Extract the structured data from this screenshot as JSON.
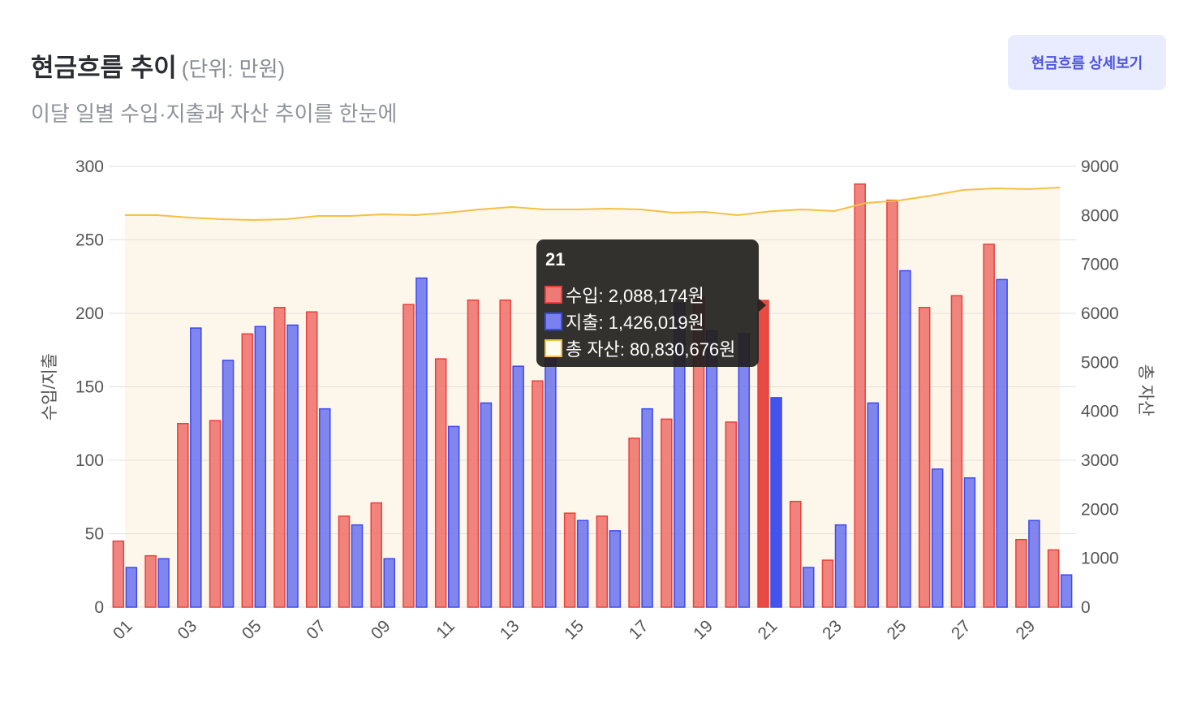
{
  "header": {
    "title": "현금흐름 추이",
    "unit": "(단위: 만원)",
    "subtitle": "이달 일별 수입·지출과 자산 추이를 한눈에",
    "detail_button": "현금흐름 상세보기"
  },
  "colors": {
    "income": "#ef6f6a",
    "income_active": "#e8403b",
    "expense": "#6a72ef",
    "expense_active": "#3a4af0",
    "assets_line": "#f5c043",
    "assets_fill": "#fdf6ea"
  },
  "chart_data": {
    "type": "bar",
    "categories": [
      "01",
      "02",
      "03",
      "04",
      "05",
      "06",
      "07",
      "08",
      "09",
      "10",
      "11",
      "12",
      "13",
      "14",
      "15",
      "16",
      "17",
      "18",
      "19",
      "20",
      "21",
      "22",
      "23",
      "24",
      "25",
      "26",
      "27",
      "28",
      "29",
      "30"
    ],
    "x_tick_labels": [
      "01",
      "03",
      "05",
      "07",
      "09",
      "11",
      "13",
      "15",
      "17",
      "19",
      "21",
      "23",
      "25",
      "27",
      "29"
    ],
    "ylabel": "수입/지출",
    "y2label": "총 자산",
    "ylim": [
      0,
      300
    ],
    "y_ticks": [
      "0",
      "50",
      "100",
      "150",
      "200",
      "250",
      "300"
    ],
    "y2lim": [
      0,
      9000
    ],
    "y2_ticks": [
      "0",
      "1000",
      "2000",
      "3000",
      "4000",
      "5000",
      "6000",
      "7000",
      "8000",
      "9000"
    ],
    "grid": true,
    "series": [
      {
        "name": "수입",
        "axis": "left",
        "type": "bar",
        "values": [
          45,
          35,
          125,
          127,
          186,
          204,
          201,
          62,
          71,
          206,
          169,
          209,
          209,
          154,
          64,
          62,
          115,
          128,
          211,
          126,
          208.8,
          72,
          32,
          288,
          277,
          204,
          212,
          247,
          46,
          39
        ]
      },
      {
        "name": "지출",
        "axis": "left",
        "type": "bar",
        "values": [
          27,
          33,
          190,
          168,
          191,
          192,
          135,
          56,
          33,
          224,
          123,
          139,
          164,
          175,
          59,
          52,
          135,
          207,
          188,
          186,
          142.6,
          27,
          56,
          139,
          229,
          94,
          88,
          223,
          59,
          22
        ]
      },
      {
        "name": "총 자산",
        "axis": "right",
        "type": "area",
        "values": [
          8006,
          8006,
          7956,
          7923,
          7906,
          7923,
          7989,
          7989,
          8022,
          8006,
          8055,
          8122,
          8172,
          8122,
          8122,
          8138,
          8122,
          8055,
          8072,
          8006,
          8083,
          8122,
          8089,
          8255,
          8304,
          8404,
          8520,
          8553,
          8537,
          8570
        ]
      }
    ],
    "active_index": 20
  },
  "tooltip": {
    "title": "21",
    "rows": [
      {
        "label": "수입: 2,088,174원"
      },
      {
        "label": "지출: 1,426,019원"
      },
      {
        "label": "총 자산: 80,830,676원"
      }
    ]
  }
}
